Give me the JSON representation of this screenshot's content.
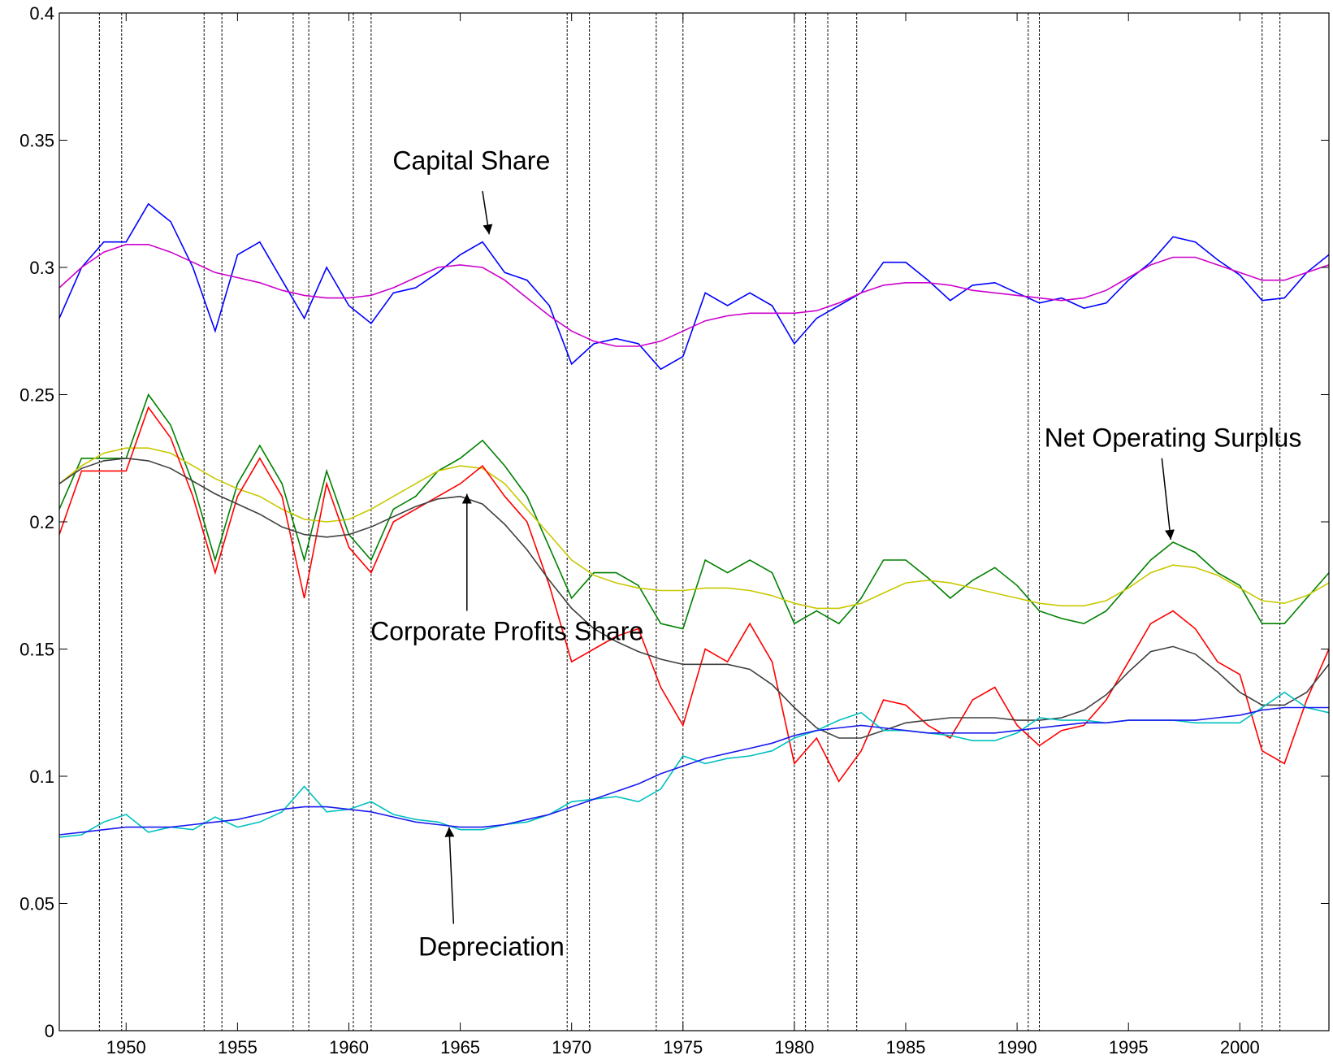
{
  "chart_data": {
    "type": "line",
    "xlim": [
      1947,
      2004
    ],
    "ylim": [
      0,
      0.4
    ],
    "xticks": [
      1950,
      1955,
      1960,
      1965,
      1970,
      1975,
      1980,
      1985,
      1990,
      1995,
      2000
    ],
    "yticks": [
      0,
      0.05,
      0.1,
      0.15,
      0.2,
      0.25,
      0.3,
      0.35,
      0.4
    ],
    "recessions": [
      1948.8,
      1949.8,
      1953.5,
      1954.3,
      1957.5,
      1958.2,
      1960.2,
      1961.0,
      1969.8,
      1970.8,
      1973.8,
      1975.0,
      1980.0,
      1980.5,
      1981.5,
      1982.8,
      1990.5,
      1991.0,
      2001.0,
      2001.8
    ],
    "x": [
      1947,
      1948,
      1949,
      1950,
      1951,
      1952,
      1953,
      1954,
      1955,
      1956,
      1957,
      1958,
      1959,
      1960,
      1961,
      1962,
      1963,
      1964,
      1965,
      1966,
      1967,
      1968,
      1969,
      1970,
      1971,
      1972,
      1973,
      1974,
      1975,
      1976,
      1977,
      1978,
      1979,
      1980,
      1981,
      1982,
      1983,
      1984,
      1985,
      1986,
      1987,
      1988,
      1989,
      1990,
      1991,
      1992,
      1993,
      1994,
      1995,
      1996,
      1997,
      1998,
      1999,
      2000,
      2001,
      2002,
      2003,
      2004
    ],
    "series": [
      {
        "color": "#0000ff",
        "values": [
          0.28,
          0.3,
          0.31,
          0.31,
          0.325,
          0.318,
          0.3,
          0.275,
          0.305,
          0.31,
          0.295,
          0.28,
          0.3,
          0.285,
          0.278,
          0.29,
          0.292,
          0.298,
          0.305,
          0.31,
          0.298,
          0.295,
          0.285,
          0.262,
          0.27,
          0.272,
          0.27,
          0.26,
          0.265,
          0.29,
          0.285,
          0.29,
          0.285,
          0.27,
          0.28,
          0.285,
          0.29,
          0.302,
          0.302,
          0.295,
          0.287,
          0.293,
          0.294,
          0.29,
          0.286,
          0.288,
          0.284,
          0.286,
          0.295,
          0.302,
          0.312,
          0.31,
          0.303,
          0.297,
          0.287,
          0.288,
          0.298,
          0.305
        ]
      },
      {
        "color": "#cc00cc",
        "values": [
          0.292,
          0.3,
          0.306,
          0.309,
          0.309,
          0.306,
          0.302,
          0.298,
          0.296,
          0.294,
          0.291,
          0.289,
          0.288,
          0.288,
          0.289,
          0.292,
          0.296,
          0.3,
          0.301,
          0.3,
          0.295,
          0.288,
          0.281,
          0.275,
          0.271,
          0.269,
          0.269,
          0.271,
          0.275,
          0.279,
          0.281,
          0.282,
          0.282,
          0.282,
          0.283,
          0.286,
          0.29,
          0.293,
          0.294,
          0.294,
          0.293,
          0.291,
          0.29,
          0.289,
          0.288,
          0.287,
          0.288,
          0.291,
          0.296,
          0.301,
          0.304,
          0.304,
          0.301,
          0.298,
          0.295,
          0.295,
          0.298,
          0.301
        ]
      },
      {
        "color": "#008000",
        "values": [
          0.205,
          0.225,
          0.225,
          0.225,
          0.25,
          0.238,
          0.215,
          0.185,
          0.215,
          0.23,
          0.215,
          0.185,
          0.22,
          0.195,
          0.185,
          0.205,
          0.21,
          0.22,
          0.225,
          0.232,
          0.222,
          0.21,
          0.19,
          0.17,
          0.18,
          0.18,
          0.175,
          0.16,
          0.158,
          0.185,
          0.18,
          0.185,
          0.18,
          0.16,
          0.165,
          0.16,
          0.17,
          0.185,
          0.185,
          0.178,
          0.17,
          0.177,
          0.182,
          0.175,
          0.165,
          0.162,
          0.16,
          0.165,
          0.175,
          0.185,
          0.192,
          0.188,
          0.18,
          0.175,
          0.16,
          0.16,
          0.17,
          0.18
        ]
      },
      {
        "color": "#c8c800",
        "values": [
          0.215,
          0.222,
          0.227,
          0.229,
          0.229,
          0.227,
          0.222,
          0.217,
          0.213,
          0.21,
          0.205,
          0.201,
          0.2,
          0.201,
          0.205,
          0.21,
          0.215,
          0.22,
          0.222,
          0.221,
          0.215,
          0.205,
          0.195,
          0.185,
          0.179,
          0.176,
          0.174,
          0.173,
          0.173,
          0.174,
          0.174,
          0.173,
          0.171,
          0.168,
          0.166,
          0.166,
          0.168,
          0.172,
          0.176,
          0.177,
          0.176,
          0.174,
          0.172,
          0.17,
          0.168,
          0.167,
          0.167,
          0.169,
          0.174,
          0.18,
          0.183,
          0.182,
          0.179,
          0.174,
          0.169,
          0.168,
          0.171,
          0.176
        ]
      },
      {
        "color": "#ff0000",
        "values": [
          0.195,
          0.22,
          0.22,
          0.22,
          0.245,
          0.233,
          0.21,
          0.18,
          0.21,
          0.225,
          0.21,
          0.17,
          0.215,
          0.19,
          0.18,
          0.2,
          0.205,
          0.21,
          0.215,
          0.222,
          0.21,
          0.2,
          0.175,
          0.145,
          0.15,
          0.155,
          0.158,
          0.135,
          0.12,
          0.15,
          0.145,
          0.16,
          0.145,
          0.105,
          0.115,
          0.098,
          0.11,
          0.13,
          0.128,
          0.12,
          0.115,
          0.13,
          0.135,
          0.12,
          0.112,
          0.118,
          0.12,
          0.13,
          0.145,
          0.16,
          0.165,
          0.158,
          0.145,
          0.14,
          0.11,
          0.105,
          0.13,
          0.15
        ]
      },
      {
        "color": "#404040",
        "values": [
          0.215,
          0.221,
          0.224,
          0.225,
          0.224,
          0.221,
          0.216,
          0.211,
          0.207,
          0.203,
          0.198,
          0.195,
          0.194,
          0.195,
          0.198,
          0.202,
          0.206,
          0.209,
          0.21,
          0.207,
          0.199,
          0.189,
          0.177,
          0.166,
          0.158,
          0.153,
          0.149,
          0.146,
          0.144,
          0.144,
          0.144,
          0.142,
          0.136,
          0.127,
          0.119,
          0.115,
          0.115,
          0.118,
          0.121,
          0.122,
          0.123,
          0.123,
          0.123,
          0.122,
          0.122,
          0.123,
          0.126,
          0.132,
          0.141,
          0.149,
          0.151,
          0.148,
          0.141,
          0.133,
          0.128,
          0.128,
          0.133,
          0.144
        ]
      },
      {
        "color": "#00c0c0",
        "values": [
          0.076,
          0.077,
          0.082,
          0.085,
          0.078,
          0.08,
          0.079,
          0.084,
          0.08,
          0.082,
          0.086,
          0.096,
          0.086,
          0.087,
          0.09,
          0.085,
          0.083,
          0.082,
          0.079,
          0.079,
          0.081,
          0.082,
          0.085,
          0.09,
          0.091,
          0.092,
          0.09,
          0.095,
          0.108,
          0.105,
          0.107,
          0.108,
          0.11,
          0.115,
          0.118,
          0.122,
          0.125,
          0.118,
          0.118,
          0.117,
          0.116,
          0.114,
          0.114,
          0.117,
          0.123,
          0.122,
          0.122,
          0.121,
          0.122,
          0.122,
          0.122,
          0.121,
          0.121,
          0.121,
          0.127,
          0.133,
          0.127,
          0.125
        ]
      },
      {
        "color": "#1a1aee",
        "values": [
          0.077,
          0.078,
          0.079,
          0.08,
          0.08,
          0.08,
          0.081,
          0.082,
          0.083,
          0.085,
          0.087,
          0.088,
          0.088,
          0.087,
          0.086,
          0.084,
          0.082,
          0.081,
          0.08,
          0.08,
          0.081,
          0.083,
          0.085,
          0.088,
          0.091,
          0.094,
          0.097,
          0.101,
          0.104,
          0.107,
          0.109,
          0.111,
          0.113,
          0.116,
          0.118,
          0.119,
          0.12,
          0.119,
          0.118,
          0.117,
          0.117,
          0.117,
          0.117,
          0.118,
          0.119,
          0.12,
          0.121,
          0.121,
          0.122,
          0.122,
          0.122,
          0.122,
          0.123,
          0.124,
          0.126,
          0.127,
          0.127,
          0.127
        ]
      }
    ],
    "annotations": [
      "Capital Share",
      "Net Operating Surplus",
      "Corporate Profits Share",
      "Depreciation"
    ]
  }
}
